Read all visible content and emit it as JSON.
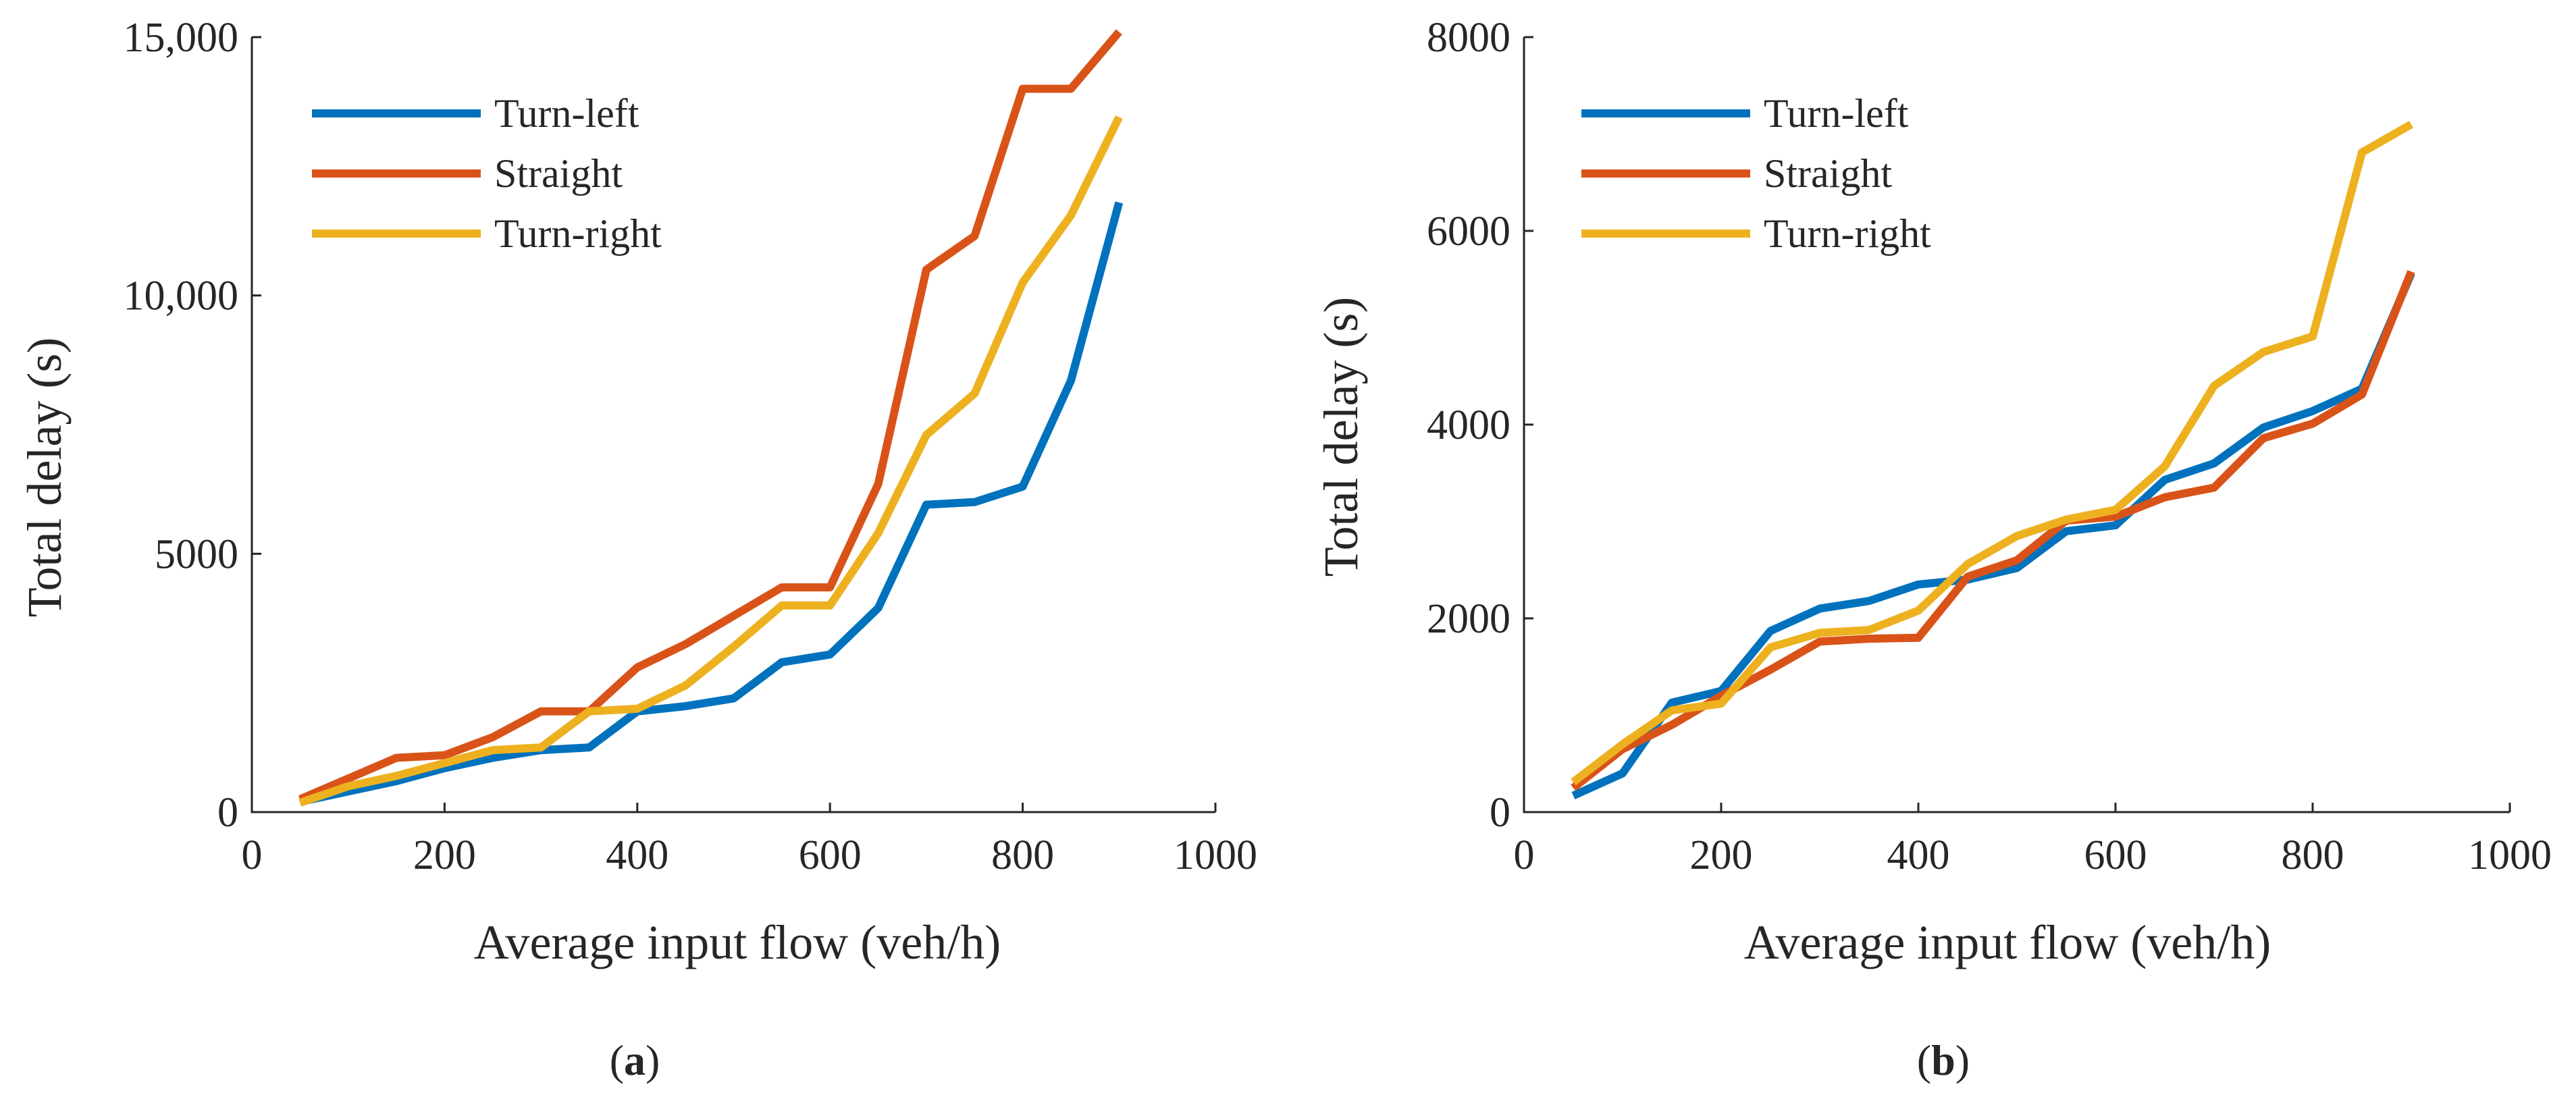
{
  "chart_data": [
    {
      "type": "line",
      "panel_label": "a",
      "xlabel": "Average input flow (veh/h)",
      "ylabel": "Total delay (s)",
      "xlim": [
        0,
        1000
      ],
      "ylim": [
        0,
        15000
      ],
      "xticks": [
        0,
        200,
        400,
        600,
        800,
        1000
      ],
      "yticks": [
        0,
        5000,
        10000,
        15000
      ],
      "xtick_labels": [
        "0",
        "200",
        "400",
        "600",
        "800",
        "1000"
      ],
      "ytick_labels": [
        "0",
        "5000",
        "10,000",
        "15,000"
      ],
      "grid": false,
      "legend_position": "top-left",
      "x": [
        50,
        100,
        150,
        200,
        250,
        300,
        350,
        400,
        450,
        500,
        550,
        600,
        650,
        700,
        750,
        800,
        850,
        900
      ],
      "series": [
        {
          "name": "Turn-left",
          "color": "#0072BD",
          "values": [
            200,
            400,
            600,
            850,
            1050,
            1200,
            1250,
            1950,
            2050,
            2200,
            2900,
            3050,
            3950,
            5950,
            6000,
            6300,
            8350,
            11800
          ]
        },
        {
          "name": "Straight",
          "color": "#D95319",
          "values": [
            250,
            650,
            1050,
            1100,
            1450,
            1950,
            1950,
            2800,
            3250,
            3800,
            4350,
            4350,
            6350,
            10500,
            11150,
            14000,
            14000,
            15100
          ]
        },
        {
          "name": "Turn-right",
          "color": "#EDB120",
          "values": [
            180,
            500,
            700,
            950,
            1200,
            1250,
            1950,
            2000,
            2450,
            3200,
            4000,
            4000,
            5400,
            7300,
            8100,
            10250,
            11550,
            13450
          ]
        }
      ]
    },
    {
      "type": "line",
      "panel_label": "b",
      "xlabel": "Average input flow (veh/h)",
      "ylabel": "Total delay (s)",
      "xlim": [
        0,
        1000
      ],
      "ylim": [
        0,
        8000
      ],
      "xticks": [
        0,
        200,
        400,
        600,
        800,
        1000
      ],
      "yticks": [
        0,
        2000,
        4000,
        6000,
        8000
      ],
      "xtick_labels": [
        "0",
        "200",
        "400",
        "600",
        "800",
        "1000"
      ],
      "ytick_labels": [
        "0",
        "2000",
        "4000",
        "6000",
        "8000"
      ],
      "grid": false,
      "legend_position": "top-left",
      "x": [
        50,
        100,
        150,
        200,
        250,
        300,
        350,
        400,
        450,
        500,
        550,
        600,
        650,
        700,
        750,
        800,
        850,
        900
      ],
      "series": [
        {
          "name": "Turn-left",
          "color": "#0072BD",
          "values": [
            170,
            400,
            1130,
            1250,
            1870,
            2100,
            2180,
            2350,
            2400,
            2520,
            2900,
            2960,
            3430,
            3600,
            3970,
            4140,
            4370,
            5560
          ]
        },
        {
          "name": "Straight",
          "color": "#D95319",
          "values": [
            250,
            650,
            900,
            1200,
            1470,
            1760,
            1790,
            1800,
            2430,
            2600,
            3010,
            3050,
            3250,
            3350,
            3860,
            4010,
            4310,
            5580
          ]
        },
        {
          "name": "Turn-right",
          "color": "#EDB120",
          "values": [
            310,
            700,
            1050,
            1120,
            1700,
            1850,
            1880,
            2080,
            2560,
            2850,
            3020,
            3120,
            3570,
            4400,
            4750,
            4910,
            6810,
            7100
          ]
        }
      ]
    }
  ]
}
